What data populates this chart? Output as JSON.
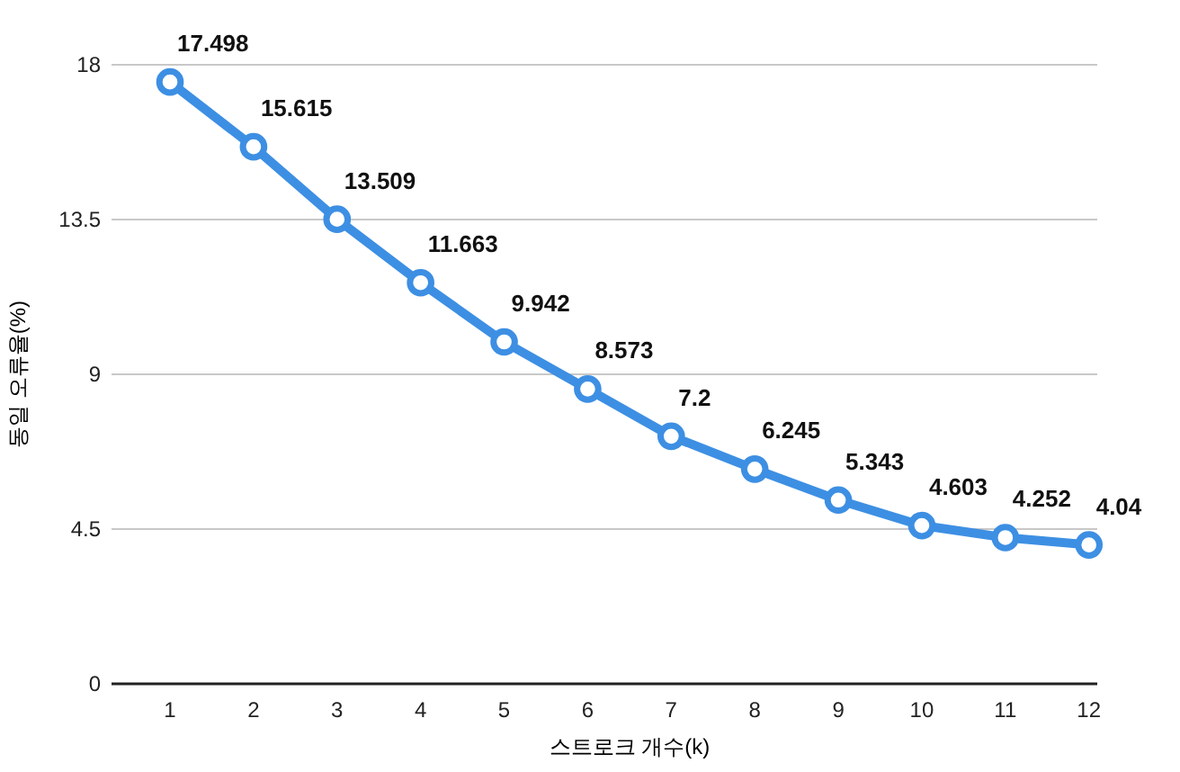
{
  "chart_data": {
    "type": "line",
    "xlabel": "스트로크 개수(k)",
    "ylabel": "동일 오류율(%)",
    "x": [
      1,
      2,
      3,
      4,
      5,
      6,
      7,
      8,
      9,
      10,
      11,
      12
    ],
    "series": [
      {
        "color": "#3d8fe3",
        "values": [
          17.498,
          15.615,
          13.509,
          11.663,
          9.942,
          8.573,
          7.2,
          6.245,
          5.343,
          4.603,
          4.252,
          4.04
        ]
      }
    ],
    "xlim": [
      0.3,
      12.1
    ],
    "xticks": [
      1,
      2,
      3,
      4,
      5,
      6,
      7,
      8,
      9,
      10,
      11,
      12
    ],
    "ylim": [
      0,
      18
    ],
    "yticks": [
      0,
      4.5,
      9,
      13.5,
      18
    ],
    "grid": "y",
    "marker": "circle",
    "line_style": "solid",
    "data_labels": true
  }
}
